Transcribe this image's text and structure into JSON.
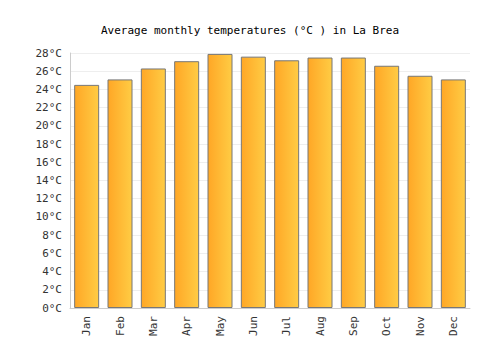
{
  "chart_data": {
    "type": "bar",
    "title": "Average monthly temperatures (°C ) in La Brea",
    "categories": [
      "Jan",
      "Feb",
      "Mar",
      "Apr",
      "May",
      "Jun",
      "Jul",
      "Aug",
      "Sep",
      "Oct",
      "Nov",
      "Dec"
    ],
    "values": [
      24.5,
      25.1,
      26.3,
      27.1,
      27.9,
      27.6,
      27.2,
      27.5,
      27.5,
      26.6,
      25.5,
      25.1
    ],
    "color": "#ffa726",
    "ylim": [
      0,
      28
    ],
    "yticks": [
      {
        "value": 0,
        "label": "0°C"
      },
      {
        "value": 2,
        "label": "2°C"
      },
      {
        "value": 4,
        "label": "4°C"
      },
      {
        "value": 6,
        "label": "6°C"
      },
      {
        "value": 8,
        "label": "8°C"
      },
      {
        "value": 10,
        "label": "10°C"
      },
      {
        "value": 12,
        "label": "12°C"
      },
      {
        "value": 14,
        "label": "14°C"
      },
      {
        "value": 16,
        "label": "16°C"
      },
      {
        "value": 18,
        "label": "18°C"
      },
      {
        "value": 20,
        "label": "20°C"
      },
      {
        "value": 22,
        "label": "22°C"
      },
      {
        "value": 24,
        "label": "24°C"
      },
      {
        "value": 26,
        "label": "26°C"
      },
      {
        "value": 28,
        "label": "28°C"
      }
    ],
    "grid": true
  }
}
